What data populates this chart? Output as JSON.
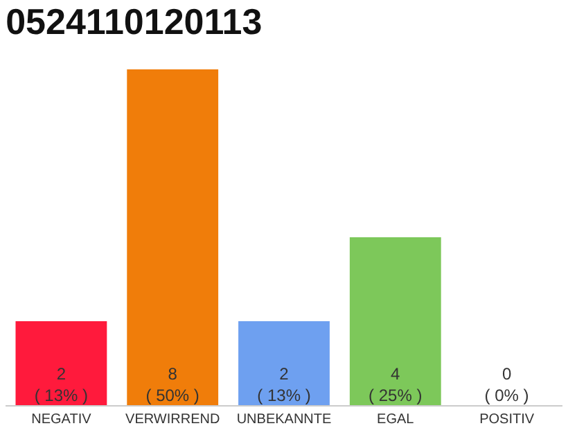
{
  "chart_data": {
    "type": "bar",
    "title": "0524110120113",
    "categories": [
      "NEGATIV",
      "VERWIRREND",
      "UNBEKANNTE",
      "EGAL",
      "POSITIV"
    ],
    "values": [
      2,
      8,
      2,
      4,
      0
    ],
    "colors": [
      "#ff1a3c",
      "#f07d0a",
      "#6ea0f0",
      "#7dc85a",
      "#c8c8c8"
    ],
    "value_labels": [
      "2\n( 13% )",
      "8\n( 50% )",
      "2\n( 13% )",
      "4\n( 25% )",
      "0\n( 0% )"
    ],
    "relative": false
  }
}
